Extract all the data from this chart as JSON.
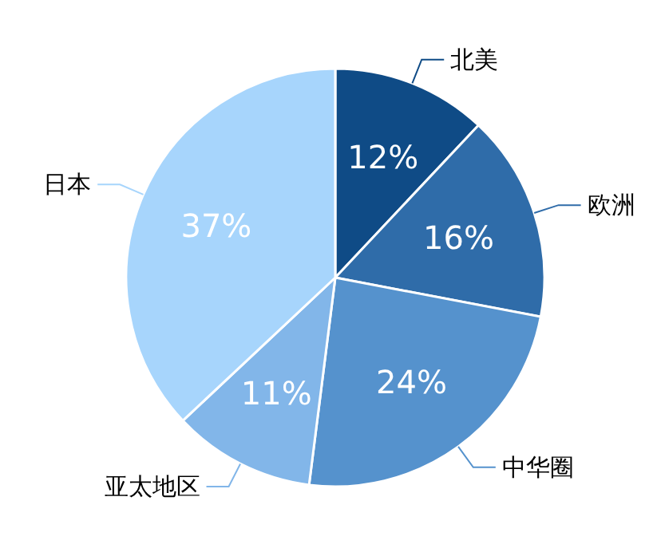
{
  "chart_data": {
    "type": "pie",
    "categories": [
      "北美",
      "欧洲",
      "中华圈",
      "亚太地区",
      "日本"
    ],
    "values": [
      12,
      16,
      24,
      11,
      37
    ],
    "colors": [
      "#0f4b86",
      "#2f6ca9",
      "#5592cd",
      "#82b6e9",
      "#a7d5fc"
    ],
    "value_labels": [
      "12%",
      "16%",
      "24%",
      "11%",
      "37%"
    ]
  }
}
